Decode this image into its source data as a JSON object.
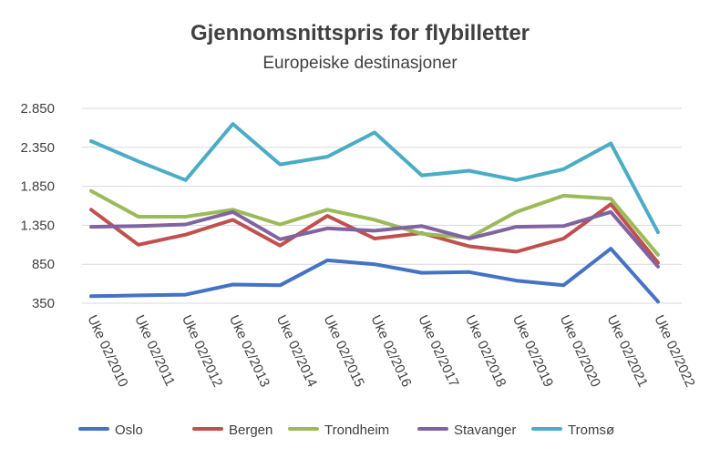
{
  "chart_data": {
    "type": "line",
    "title": "Gjennomsnittspris for flybilletter",
    "subtitle": "Europeiske destinasjoner",
    "xlabel": "",
    "ylabel": "",
    "categories": [
      "Uke 02/2010",
      "Uke 02/2011",
      "Uke 02/2012",
      "Uke 02/2013",
      "Uke 02/2014",
      "Uke 02/2015",
      "Uke 02/2016",
      "Uke 02/2017",
      "Uke 02/2018",
      "Uke 02/2019",
      "Uke 02/2020",
      "Uke 02/2021",
      "Uke 02/2022"
    ],
    "yticks": [
      350,
      850,
      1350,
      1850,
      2350,
      2850
    ],
    "ytick_labels": [
      "350",
      "850",
      "1.350",
      "1.850",
      "2.350",
      "2.850"
    ],
    "ylim": [
      350,
      2850
    ],
    "grid": true,
    "legend_position": "bottom",
    "series": [
      {
        "name": "Oslo",
        "color": "#4472c4",
        "values": [
          440,
          450,
          460,
          590,
          580,
          900,
          850,
          740,
          750,
          640,
          580,
          1050,
          370
        ]
      },
      {
        "name": "Bergen",
        "color": "#c0504d",
        "values": [
          1550,
          1100,
          1230,
          1420,
          1090,
          1470,
          1180,
          1250,
          1080,
          1010,
          1180,
          1620,
          870
        ]
      },
      {
        "name": "Trondheim",
        "color": "#9bbb59",
        "values": [
          1790,
          1460,
          1460,
          1550,
          1360,
          1550,
          1420,
          1240,
          1190,
          1520,
          1730,
          1690,
          970
        ]
      },
      {
        "name": "Stavanger",
        "color": "#8064a2",
        "values": [
          1330,
          1340,
          1360,
          1520,
          1170,
          1310,
          1280,
          1340,
          1180,
          1330,
          1340,
          1520,
          820
        ]
      },
      {
        "name": "Tromsø",
        "color": "#4bacc6",
        "values": [
          2430,
          2170,
          1930,
          2650,
          2130,
          2230,
          2540,
          1990,
          2050,
          1930,
          2070,
          2400,
          1260
        ]
      }
    ]
  }
}
